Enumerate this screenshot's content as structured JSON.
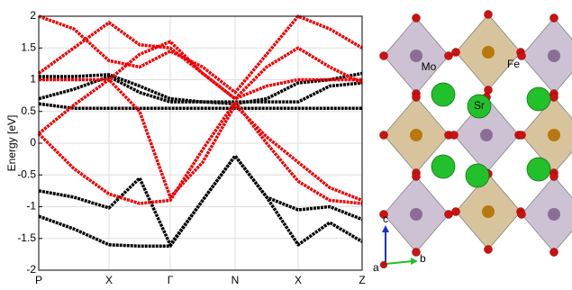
{
  "chart_data": {
    "type": "line",
    "y_label": "Energy [eV]",
    "x": [
      0,
      0.39,
      0.78,
      1.12,
      1.46,
      1.82,
      2.18,
      2.53,
      2.88,
      3.23,
      3.59
    ],
    "xlim": [
      0,
      3.59
    ],
    "xticks": [
      {
        "value": 0,
        "label": "P"
      },
      {
        "value": 0.78,
        "label": "X"
      },
      {
        "value": 1.46,
        "label": "Γ"
      },
      {
        "value": 2.18,
        "label": "N"
      },
      {
        "value": 2.88,
        "label": "X"
      },
      {
        "value": 3.59,
        "label": "Z"
      }
    ],
    "ylim": [
      -2,
      2
    ],
    "yticks": [
      -2,
      -1.5,
      -1,
      -0.5,
      0,
      0.5,
      1,
      1.5,
      2
    ],
    "grid": true,
    "series": [
      {
        "color": "#000000",
        "values": [
          -1.15,
          -1.35,
          -1.6,
          -1.62,
          -1.62,
          -0.9,
          -0.2,
          -0.85,
          -1.6,
          -1.25,
          -1.55
        ]
      },
      {
        "color": "#000000",
        "values": [
          -0.75,
          -0.85,
          -1.02,
          -0.55,
          -1.6,
          -0.9,
          -0.2,
          -0.85,
          -1.05,
          -1.0,
          -1.2
        ]
      },
      {
        "color": "#000000",
        "values": [
          0.62,
          0.55,
          0.55,
          0.55,
          0.55,
          0.55,
          0.55,
          0.55,
          0.55,
          0.55,
          0.55
        ]
      },
      {
        "color": "#000000",
        "values": [
          0.7,
          0.85,
          1.05,
          0.8,
          0.65,
          0.65,
          0.65,
          0.65,
          0.65,
          0.9,
          0.95
        ]
      },
      {
        "color": "#000000",
        "values": [
          1.05,
          1.05,
          1.08,
          0.9,
          0.7,
          0.65,
          0.62,
          0.7,
          0.95,
          1.0,
          1.1
        ]
      },
      {
        "color": "#ee0000",
        "values": [
          0.15,
          -0.4,
          -0.8,
          -0.95,
          -0.9,
          -0.1,
          0.65,
          0.0,
          -0.6,
          -0.9,
          -0.95
        ]
      },
      {
        "color": "#ee0000",
        "values": [
          0.15,
          0.6,
          1.0,
          0.5,
          -0.85,
          -0.3,
          0.6,
          0.1,
          -0.3,
          -0.7,
          -0.9
        ]
      },
      {
        "color": "#ee0000",
        "values": [
          1.0,
          1.0,
          1.0,
          1.4,
          1.6,
          1.1,
          0.7,
          0.9,
          1.0,
          1.0,
          1.0
        ]
      },
      {
        "color": "#ee0000",
        "values": [
          1.1,
          1.5,
          1.9,
          1.55,
          1.5,
          1.1,
          0.7,
          1.2,
          1.5,
          1.2,
          0.95
        ]
      },
      {
        "color": "#ee0000",
        "values": [
          2.0,
          1.8,
          1.3,
          1.2,
          1.45,
          1.2,
          0.8,
          1.4,
          2.0,
          1.8,
          1.5
        ]
      }
    ]
  },
  "structure": {
    "labels": {
      "mo": "Mo",
      "fe": "Fe",
      "sr": "Sr",
      "a": "a",
      "b": "b",
      "c": "c"
    }
  }
}
